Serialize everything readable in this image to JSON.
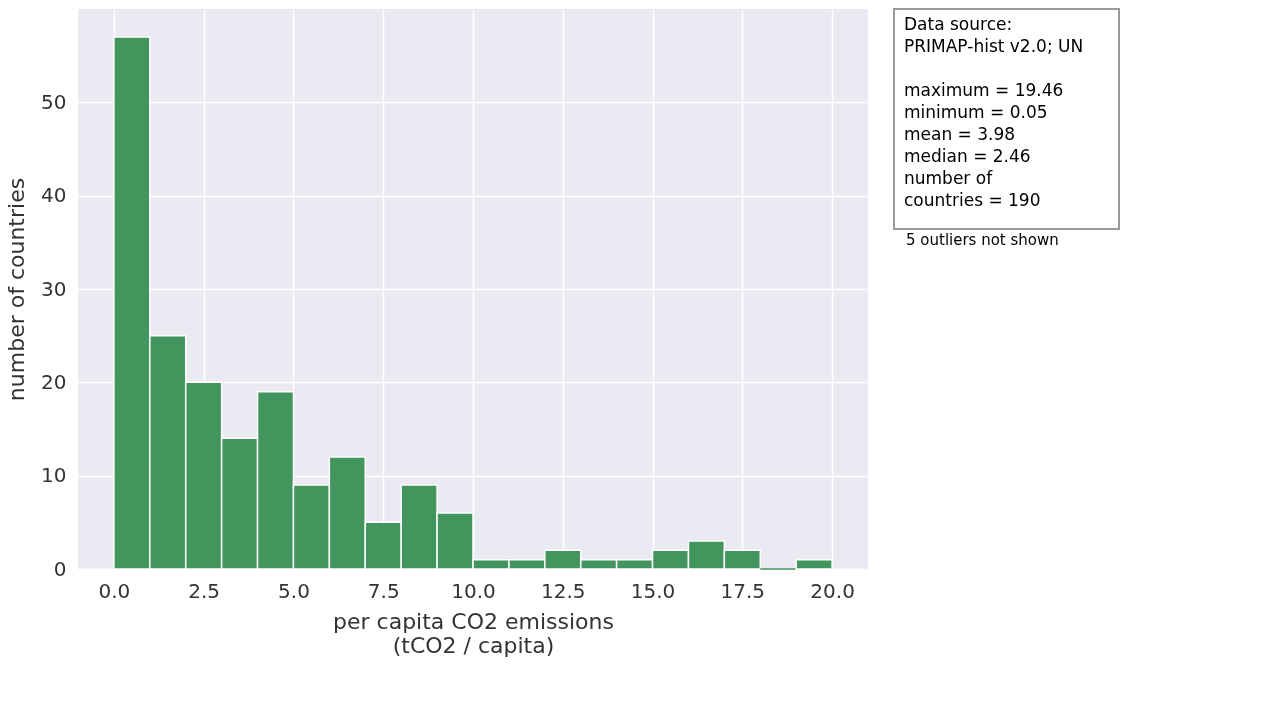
{
  "chart_data": {
    "type": "histogram",
    "xlabel": "per capita CO2 emissions\n(tCO2 / capita)",
    "ylabel": "number of countries",
    "bins": [
      0,
      1,
      2,
      3,
      4,
      5,
      6,
      7,
      8,
      9,
      10,
      11,
      12,
      13,
      14,
      15,
      16,
      17,
      18,
      19,
      20
    ],
    "values": [
      57,
      25,
      20,
      14,
      19,
      9,
      12,
      5,
      9,
      6,
      1,
      1,
      2,
      1,
      1,
      2,
      3,
      2,
      0,
      1
    ],
    "color": "#3a9154",
    "xlim": [
      -1,
      21
    ],
    "xticks": [
      {
        "value": 0,
        "label": "0.0"
      },
      2.5,
      {
        "value": 5,
        "label": "5.0"
      },
      7.5,
      {
        "value": 10,
        "label": "10.0"
      },
      12.5,
      {
        "value": 15,
        "label": "15.0"
      },
      17.5,
      {
        "value": 20,
        "label": "20.0"
      }
    ],
    "ylim": [
      0,
      60
    ],
    "yticks": [
      0,
      10,
      20,
      30,
      40,
      50
    ],
    "grid": true,
    "annotations": [
      "Data source:",
      " PRIMAP-hist v2.0; UN",
      "maximum  = 19.46",
      "minimum   = 0.05",
      "mean        = 3.98",
      "median     = 2.46",
      "number of",
      "countries  = 190",
      "5 outliers not shown"
    ]
  }
}
